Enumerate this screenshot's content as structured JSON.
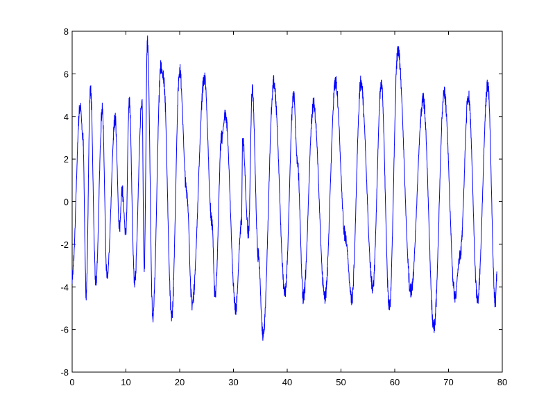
{
  "chart_data": {
    "type": "line",
    "title": "",
    "xlabel": "",
    "ylabel": "",
    "xlim": [
      0,
      80
    ],
    "ylim": [
      -8,
      8
    ],
    "xticks": [
      "0",
      "10",
      "20",
      "30",
      "40",
      "50",
      "60",
      "70",
      "80"
    ],
    "yticks": [
      "-8",
      "-6",
      "-4",
      "-2",
      "0",
      "2",
      "4",
      "6",
      "8"
    ],
    "grid": false,
    "line_color": "#0000ff",
    "series": [
      {
        "x": [
          0,
          1.5,
          2,
          2.6,
          3.4,
          4.4,
          5.6,
          6.5,
          8,
          8.8,
          9.3,
          10,
          10.6,
          11.6,
          13,
          13.4,
          14,
          15,
          16.5,
          17,
          18.5,
          20,
          21.3,
          22.3,
          24.6,
          26,
          26.6,
          27.8,
          28.5,
          30.4,
          31.5,
          31.7,
          32.8,
          33.5,
          34.6,
          35.5,
          37.5,
          39.6,
          41.2,
          41.9,
          43,
          44.9,
          47,
          49,
          50.8,
          52,
          53.7,
          55.9,
          57.5,
          59,
          60.6,
          63,
          65.3,
          67.3,
          69.2,
          71.2,
          72.2,
          73.7,
          75.4,
          77.3,
          78.7,
          79
        ],
        "y": [
          -3.5,
          4.5,
          3,
          -4.3,
          5.3,
          -3.8,
          4.3,
          -3.6,
          3.9,
          -1.2,
          0.5,
          -1.5,
          4.8,
          -3.8,
          4.8,
          -3.3,
          7.5,
          -5.4,
          6.3,
          5.8,
          -5.4,
          6.2,
          0.5,
          -4.8,
          5.8,
          -1,
          -4.5,
          3.0,
          4.1,
          -5.0,
          -1,
          2.9,
          -1.5,
          5.3,
          -2.5,
          -6.2,
          5.6,
          -4.3,
          5.0,
          1.8,
          -4.5,
          4.6,
          -4.5,
          5.6,
          -1.6,
          -4.6,
          5.6,
          -4.0,
          5.5,
          -5.0,
          7.1,
          -4.2,
          4.8,
          -5.9,
          5.1,
          -4.4,
          -2.4,
          5.0,
          -4.6,
          5.5,
          -4.7,
          -3.3
        ]
      }
    ]
  }
}
